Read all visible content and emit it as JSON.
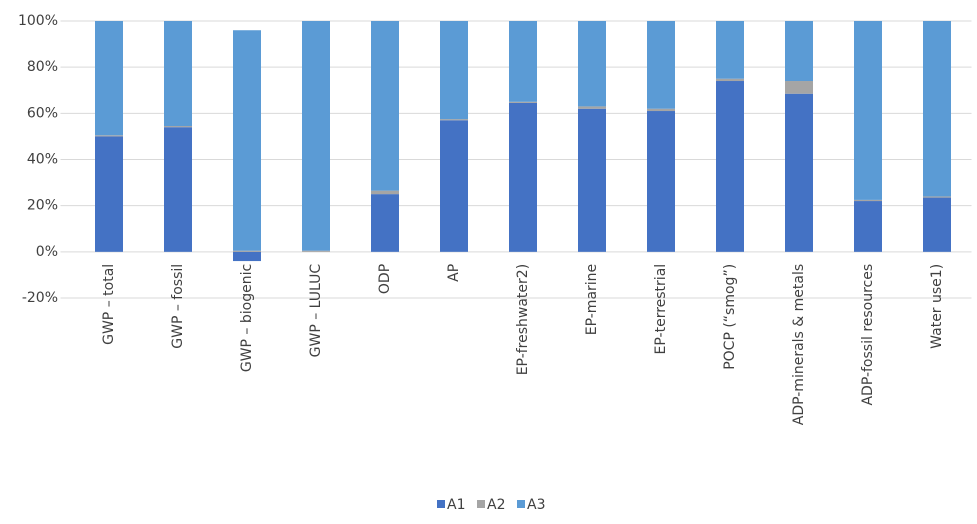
{
  "chart_data": {
    "type": "stacked_bar",
    "categories": [
      "GWP – total",
      "GWP – fossil",
      "GWP – biogenic",
      "GWP – LULUC",
      "ODP",
      "AP",
      "EP-freshwater2)",
      "EP-marine",
      "EP-terrestrial",
      "POCP (“smog”)",
      "ADP-minerals & metals",
      "ADP-fossil resources",
      "Water use1)"
    ],
    "series": [
      {
        "name": "A1",
        "color": "#4472c4",
        "values": [
          50,
          54,
          -4,
          0,
          25,
          57,
          64.5,
          62,
          61,
          74,
          68.5,
          22,
          23.5
        ]
      },
      {
        "name": "A2",
        "color": "#a5a5a5",
        "values": [
          0.5,
          0.5,
          0.5,
          0.5,
          1.5,
          0.5,
          0.5,
          1,
          1,
          1,
          5.5,
          0.5,
          0.5
        ]
      },
      {
        "name": "A3",
        "color": "#5b9bd5",
        "values": [
          49.5,
          45.5,
          95.5,
          99.5,
          73.5,
          42.5,
          35,
          37,
          38,
          25,
          26,
          77.5,
          76
        ]
      }
    ],
    "ylim": [
      -20,
      100
    ],
    "yticks": [
      {
        "value": -20,
        "label": "-20%"
      },
      {
        "value": 0,
        "label": "0%"
      },
      {
        "value": 20,
        "label": "20%"
      },
      {
        "value": 40,
        "label": "40%"
      },
      {
        "value": 60,
        "label": "60%"
      },
      {
        "value": 80,
        "label": "80%"
      },
      {
        "value": 100,
        "label": "100%"
      }
    ],
    "grid": true,
    "legend": "bottom"
  }
}
